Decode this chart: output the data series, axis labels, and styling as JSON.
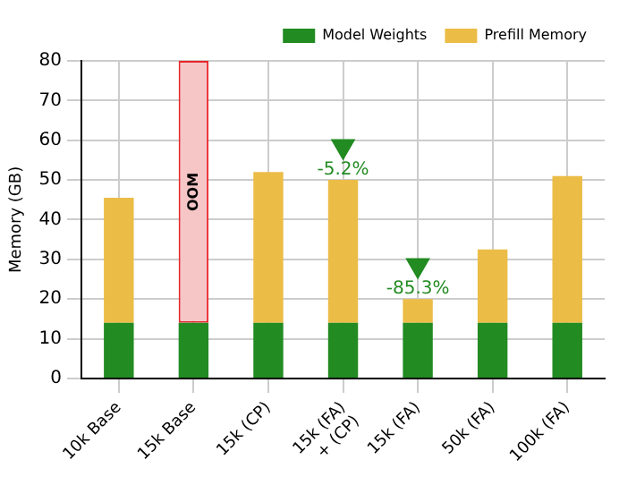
{
  "chart_data": {
    "type": "bar",
    "stacked": true,
    "ylabel": "Memory (GB)",
    "categories": [
      "10k Base",
      "15k Base",
      "15k (CP)",
      "15k (FA)\n+ (CP)",
      "15k (FA)",
      "50k (FA)",
      "100k (FA)"
    ],
    "series": [
      {
        "name": "Model Weights",
        "color": "#228b22",
        "values": [
          14,
          14,
          14,
          14,
          14,
          14,
          14
        ]
      },
      {
        "name": "Prefill Memory",
        "color": "#ebbd47",
        "colors": [
          "#ebbd47",
          "#f6c6c7",
          "#ebbd47",
          "#ebbd47",
          "#ebbd47",
          "#ebbd47",
          "#ebbd47"
        ],
        "values": [
          31.5,
          66,
          38,
          36,
          6,
          18.5,
          37
        ]
      },
      {
        "type": "scatter",
        "marker": "triangle",
        "color": "#228b22",
        "x": [
          "15k (FA)\n+ (CP)",
          "15k (FA)"
        ],
        "values": [
          58.5,
          28.5
        ]
      }
    ],
    "annotations": [
      "OOM",
      {
        "text": "-5.2%",
        "x": "15k (FA)\n+ (CP)",
        "y": 58.5
      },
      {
        "text": "-85.3%",
        "x": "15k (FA)",
        "y": 28.5
      }
    ],
    "ylim": [
      0,
      80
    ],
    "yticks": [
      0,
      10,
      20,
      30,
      40,
      50,
      60,
      70,
      80
    ],
    "grid": true,
    "legend": "top right"
  }
}
